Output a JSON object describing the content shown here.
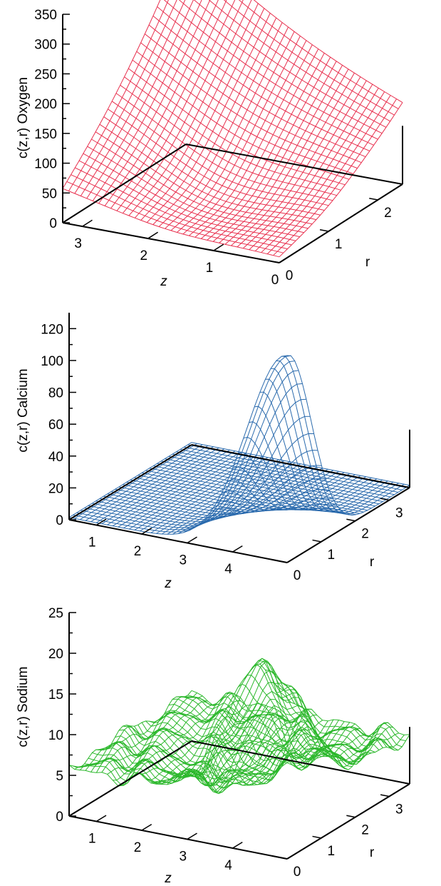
{
  "chart_data": [
    {
      "type": "surface",
      "color": "#e8304e",
      "zlabel": "c(z,r) Oxygen",
      "xlabel": "z",
      "ylabel": "r",
      "z_ticks": [
        "0",
        "50",
        "100",
        "150",
        "200",
        "250",
        "300",
        "350"
      ],
      "z_tick_values": [
        0,
        50,
        100,
        150,
        200,
        250,
        300,
        350
      ],
      "x_ticks": [
        "3",
        "2",
        "1",
        "0"
      ],
      "x_tick_values": [
        3,
        2,
        1,
        0
      ],
      "y_ticks": [
        "0",
        "1",
        "2"
      ],
      "y_tick_values": [
        0,
        1,
        2
      ],
      "xlim": [
        0,
        3.3
      ],
      "ylim": [
        0,
        2.5
      ],
      "zlim": [
        0,
        350
      ],
      "grid_nx": 36,
      "grid_ny": 30,
      "surface": {
        "corner_values": {
          "z3_r0": 65,
          "z3_r2.5": 340,
          "z0_r0": 10,
          "z0_r2.5": 160
        },
        "minimum": {
          "z": 1.3,
          "r": 0.5,
          "c": 5
        }
      }
    },
    {
      "type": "surface",
      "color": "#2a6aad",
      "zlabel": "c(z,r) Calcium",
      "xlabel": "z",
      "ylabel": "r",
      "z_ticks": [
        "0",
        "20",
        "40",
        "60",
        "80",
        "100",
        "120"
      ],
      "z_tick_values": [
        0,
        20,
        40,
        60,
        80,
        100,
        120
      ],
      "x_ticks": [
        "1",
        "2",
        "3",
        "4"
      ],
      "x_tick_values": [
        1,
        2,
        3,
        4
      ],
      "y_ticks": [
        "0",
        "1",
        "2",
        "3"
      ],
      "y_tick_values": [
        0,
        1,
        2,
        3
      ],
      "xlim": [
        0.4,
        5.2
      ],
      "ylim": [
        0,
        3.6
      ],
      "zlim": [
        0,
        130
      ],
      "grid_nx": 40,
      "grid_ny": 32,
      "surface": {
        "peak": {
          "z": 5.2,
          "r": 0,
          "c": 130
        },
        "decay_z": 1.25,
        "decay_r": 1.0,
        "baseline": 1.5
      }
    },
    {
      "type": "surface",
      "color": "#2cb82c",
      "zlabel": "c(z,r) Sodium",
      "xlabel": "z",
      "ylabel": "r",
      "z_ticks": [
        "0",
        "5",
        "10",
        "15",
        "20",
        "25"
      ],
      "z_tick_values": [
        0,
        5,
        10,
        15,
        20,
        25
      ],
      "x_ticks": [
        "1",
        "2",
        "3",
        "4"
      ],
      "x_tick_values": [
        1,
        2,
        3,
        4
      ],
      "y_ticks": [
        "0",
        "1",
        "2",
        "3"
      ],
      "y_tick_values": [
        0,
        1,
        2,
        3
      ],
      "xlim": [
        0.4,
        5.2
      ],
      "ylim": [
        0,
        3.6
      ],
      "zlim": [
        0,
        25
      ],
      "grid_nx": 40,
      "grid_ny": 32,
      "surface": {
        "peak": {
          "z": 4.6,
          "r": 0,
          "c": 23
        },
        "low": {
          "z": 2.8,
          "r": 1.8,
          "c": 2
        },
        "edge_level": 6,
        "noise_amplitude": 1.2
      }
    }
  ]
}
